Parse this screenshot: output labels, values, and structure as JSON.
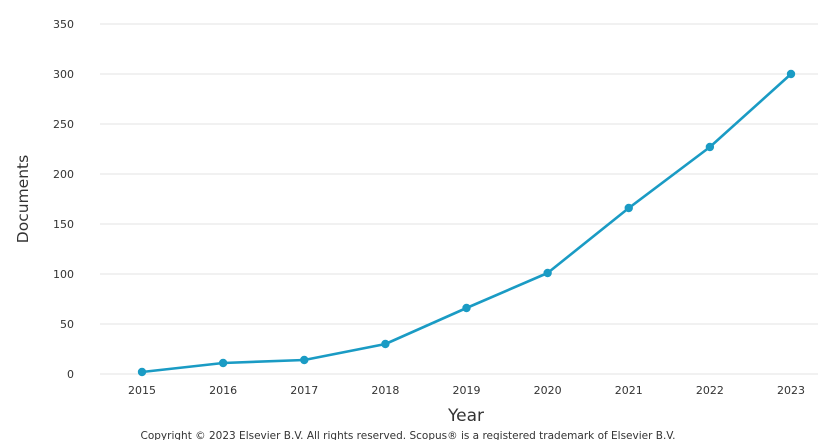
{
  "chart_data": {
    "type": "line",
    "title": "",
    "xlabel": "Year",
    "ylabel": "Documents",
    "categories": [
      "2015",
      "2016",
      "2017",
      "2018",
      "2019",
      "2020",
      "2021",
      "2022",
      "2023"
    ],
    "series": [
      {
        "values": [
          2,
          11,
          14,
          30,
          66,
          101,
          166,
          227,
          300
        ],
        "color": "#1a9bc4"
      }
    ],
    "ylim": [
      0,
      350
    ],
    "yticks": [
      0,
      50,
      100,
      150,
      200,
      250,
      300,
      350
    ],
    "grid": true,
    "legend": "none"
  },
  "footer": {
    "copyright": "Copyright © 2023 Elsevier B.V. All rights reserved. Scopus® is a registered trademark of Elsevier B.V."
  }
}
